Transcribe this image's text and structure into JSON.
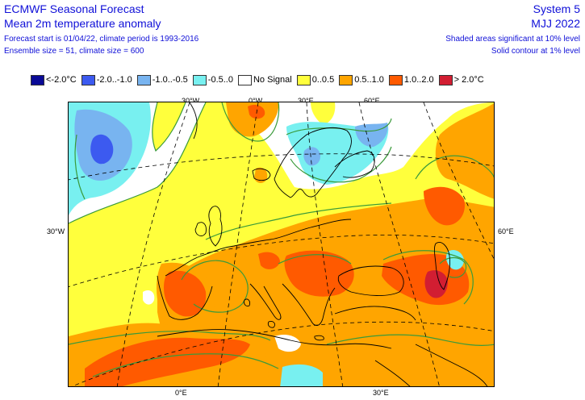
{
  "header": {
    "title_left": "ECMWF Seasonal Forecast",
    "subtitle_left": "Mean 2m temperature anomaly",
    "info_line1": "Forecast start is 01/04/22, climate period is 1993-2016",
    "info_line2": "Ensemble size = 51, climate size = 600",
    "system": "System 5",
    "period": "MJJ 2022",
    "note1": "Shaded areas significant at 10% level",
    "note2": "Solid contour at 1% level"
  },
  "legend": [
    {
      "label": "<-2.0°C",
      "color": "#0a0a96"
    },
    {
      "label": "-2.0..-1.0",
      "color": "#3c5af0"
    },
    {
      "label": "-1.0..-0.5",
      "color": "#78b4f0"
    },
    {
      "label": "-0.5..0",
      "color": "#78f0f0"
    },
    {
      "label": "No Signal",
      "color": "#ffffff"
    },
    {
      "label": "0..0.5",
      "color": "#ffff3c"
    },
    {
      "label": "0.5..1.0",
      "color": "#ffa500"
    },
    {
      "label": "1.0..2.0",
      "color": "#ff5a00"
    },
    {
      "label": "> 2.0°C",
      "color": "#d21e32"
    }
  ],
  "axes": {
    "top": [
      "30°W",
      "0°W",
      "30°E",
      "60°E"
    ],
    "left": "30°W",
    "right": "60°E",
    "bottom": [
      "0°E",
      "30°E"
    ]
  },
  "colors": {
    "strong_cold": "#0a0a96",
    "cold": "#3c5af0",
    "cool": "#78b4f0",
    "slightly_cool": "#78f0f0",
    "slightly_warm": "#ffff3c",
    "warm": "#ffa500",
    "hot": "#ff5a00",
    "very_hot": "#d21e32",
    "contour": "#3a9a3a",
    "coastline": "#000000",
    "graticule": "#000000"
  }
}
